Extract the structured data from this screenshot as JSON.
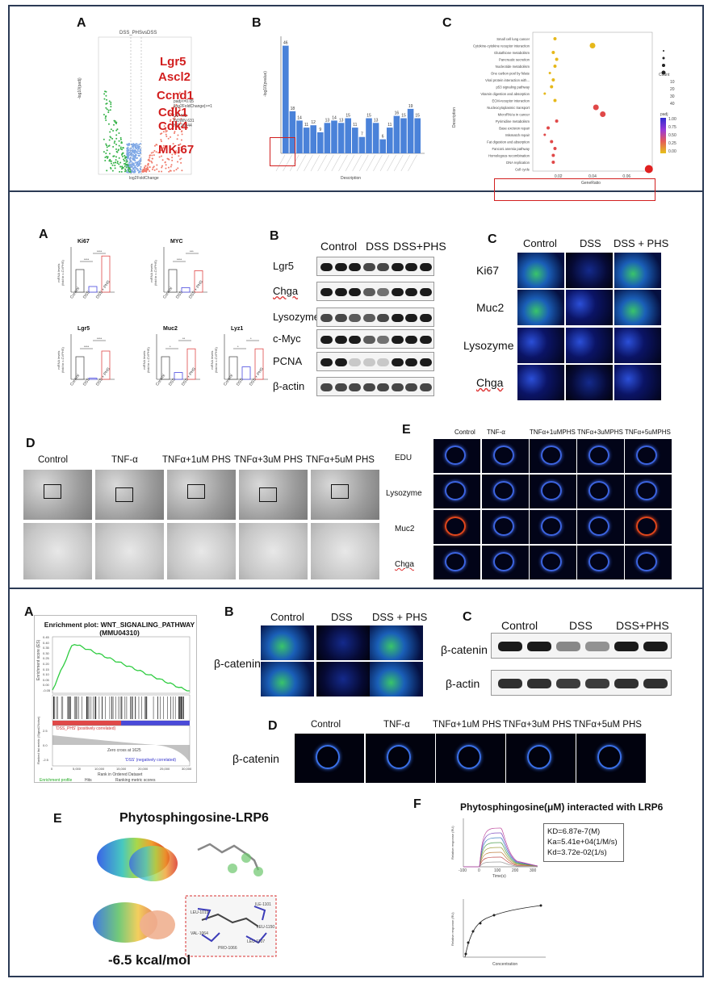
{
  "panel1": {
    "A": {
      "label": "A",
      "title": "DSS_PHSvsDSS",
      "xlabel": "log2FoldChange",
      "ylabel": "-log10(padj)",
      "legend_title": "padj<=0.05\n|log2FoldChange|>=1",
      "legend": [
        "UP 442",
        "DOWN 631",
        "NO 20344"
      ],
      "genes": [
        "Lgr5",
        "Ascl2",
        "Ccnd1",
        "Cdk1",
        "Cdk4",
        "MKi67"
      ]
    },
    "B": {
      "label": "B",
      "ylabel": "-log10(pvalue)",
      "xlabel": "Description",
      "bar_values": [
        "46",
        "18",
        "14",
        "11",
        "12",
        "9",
        "13",
        "14",
        "13",
        "15",
        "11",
        "7",
        "15",
        "13",
        "6",
        "11",
        "16",
        "15",
        "19",
        "15"
      ]
    },
    "C": {
      "label": "C",
      "ylabel": "Description",
      "xlabel": "GeneRatio",
      "terms": [
        "Small cell lung cancer",
        "Cytokine-cytokine receptor interaction",
        "Glutathione metabolism",
        "Pancreatic secretion",
        "Nucleotide metabolism",
        "One carbon pool by folate",
        "Viral protein interaction with...",
        "p53 signaling pathway",
        "Vitamin digestion and absorption",
        "ECM-receptor interaction",
        "Nucleocytoplasmic transport",
        "MicroRNAs in cancer",
        "Pyrimidine metabolism",
        "Base excision repair",
        "Mismatch repair",
        "Fat digestion and absorption",
        "Fanconi anemia pathway",
        "Homologous recombination",
        "DNA replication",
        "Cell cycle"
      ],
      "xticks": [
        "0.02",
        "0.04",
        "0.06"
      ],
      "count_title": "Count",
      "count_levels": [
        "10",
        "20",
        "30",
        "40"
      ],
      "padj_title": "padj",
      "padj_ticks": [
        "1.00",
        "0.75",
        "0.50",
        "0.25",
        "0.00"
      ]
    }
  },
  "panel2": {
    "A": {
      "label": "A",
      "ylabel": "mRNA levels\n(fold to c-CVPHS)",
      "groups": [
        "Control",
        "DSS",
        "DSS + PHS"
      ],
      "charts": [
        {
          "title": "Ki67",
          "sig": [
            "****",
            "****"
          ]
        },
        {
          "title": "MYC",
          "sig": [
            "****",
            "***"
          ]
        },
        {
          "title": "Lgr5",
          "sig": [
            "****",
            "****"
          ]
        },
        {
          "title": "Muc2",
          "sig": [
            "*",
            "**"
          ]
        },
        {
          "title": "Lyz1",
          "sig": [
            "*",
            "*"
          ]
        }
      ]
    },
    "B": {
      "label": "B",
      "headers": [
        "Control",
        "DSS",
        "DSS+PHS"
      ],
      "rows": [
        "Lgr5",
        "Chga",
        "Lysozyme",
        "c-Myc",
        "PCNA",
        "β-actin"
      ]
    },
    "C": {
      "label": "C",
      "headers": [
        "Control",
        "DSS",
        "DSS + PHS"
      ],
      "rows": [
        "Ki67",
        "Muc2",
        "Lysozyme",
        "Chga"
      ]
    },
    "D": {
      "label": "D",
      "headers": [
        "Control",
        "TNF-α",
        "TNFα+1uM PHS",
        "TNFα+3uM PHS",
        "TNFα+5uM PHS"
      ]
    },
    "E": {
      "label": "E",
      "headers": [
        "Control",
        "TNF-α",
        "TNFα+1uMPHS",
        "TNFα+3uMPHS",
        "TNFα+5uMPHS"
      ],
      "rows": [
        "EDU",
        "Lysozyme",
        "Muc2",
        "Chga"
      ]
    }
  },
  "panel3": {
    "A": {
      "label": "A",
      "title": "Enrichment plot: WNT_SIGNALING_PATHWAY\n(MMU04310)",
      "ylabel_top": "Enrichment score (ES)",
      "ylabel_bottom": "Ranked list metric (Signal2Noise)",
      "xlabel": "Rank in Ordered Dataset",
      "pos_label": "'DSS_PHS' (positively correlated)",
      "neg_label": "'DSS' (negatively correlated)",
      "zero_cross": "Zero cross at 1625",
      "legend": [
        "Enrichment profile",
        "Hits",
        "Ranking metric scores"
      ],
      "es_yticks": [
        "0.45",
        "0.40",
        "0.35",
        "0.30",
        "0.25",
        "0.20",
        "0.15",
        "0.10",
        "0.05",
        "0.00",
        "-0.05"
      ],
      "rank_yticks": [
        "2.5",
        "0.0",
        "-2.5"
      ],
      "xticks": [
        "0",
        "5,000",
        "10,000",
        "15,000",
        "20,000",
        "25,000",
        "30,000"
      ]
    },
    "B": {
      "label": "B",
      "headers": [
        "Control",
        "DSS",
        "DSS + PHS"
      ],
      "row": "β-catenin"
    },
    "C": {
      "label": "C",
      "headers": [
        "Control",
        "DSS",
        "DSS+PHS"
      ],
      "rows": [
        "β-catenin",
        "β-actin"
      ]
    },
    "D": {
      "label": "D",
      "headers": [
        "Control",
        "TNF-α",
        "TNFα+1uM PHS",
        "TNFα+3uM PHS",
        "TNFα+5uM PHS"
      ],
      "row": "β-catenin"
    },
    "E": {
      "label": "E",
      "title": "Phytosphingosine-LRP6",
      "energy": "-6.5 kcal/mol",
      "residues": [
        "LEU-1019",
        "ILE-1101",
        "VAL-1064",
        "LEU-1150",
        "LEU-1107",
        "PRO-1066"
      ]
    },
    "F": {
      "label": "F",
      "title": "Phytosphingosine(μM) interacted with LRP6",
      "kd": "KD=6.87e-7(M)",
      "ka": "Ka=5.41e+04(1/M/s)",
      "kd2": "Kd=3.72e-02(1/s)",
      "sensor_xlabel": "Time(s)",
      "sensor_ylabel": "Relative response (RU)",
      "sensor_xticks": [
        "-100",
        "0",
        "100",
        "200",
        "300"
      ],
      "sat_xlabel": "Concentration",
      "sat_ylabel": "Relative response (RU)"
    }
  }
}
